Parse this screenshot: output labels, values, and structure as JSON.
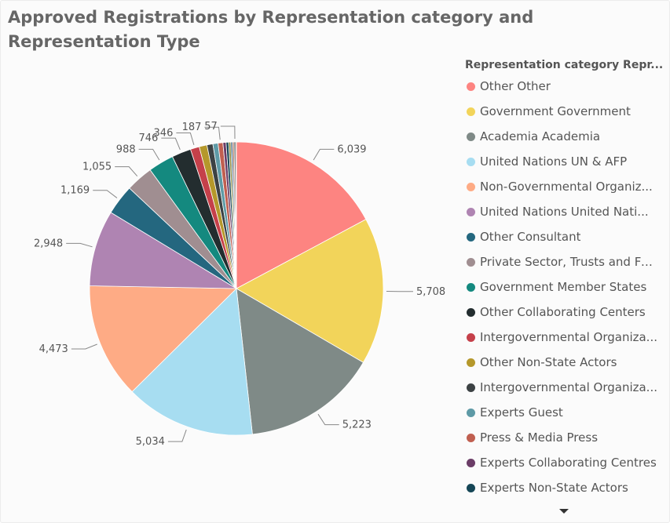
{
  "chart_data": {
    "type": "pie",
    "title": "Approved Registrations by Representation category and Representation Type",
    "legend": {
      "title": "Representation category Repr...",
      "placement": "right"
    },
    "slices": [
      {
        "label": "Other Other",
        "display_label": "Other Other",
        "value": 6039,
        "value_label": "6,039",
        "color": "#FD8481"
      },
      {
        "label": "Government Government",
        "display_label": "Government Government",
        "value": 5708,
        "value_label": "5,708",
        "color": "#F2D45A"
      },
      {
        "label": "Academia Academia",
        "display_label": "Academia Academia",
        "value": 5223,
        "value_label": "5,223",
        "color": "#7F8A87"
      },
      {
        "label": "United Nations UN & AFP",
        "display_label": "United Nations UN & AFP",
        "value": 5034,
        "value_label": "5,034",
        "color": "#A7DDF1"
      },
      {
        "label": "Non-Governmental Organiz...",
        "display_label": "Non-Governmental Organiz...",
        "value": 4473,
        "value_label": "4,473",
        "color": "#FEAB85"
      },
      {
        "label": "United Nations United Nati...",
        "display_label": "United Nations United Nati...",
        "value": 2948,
        "value_label": "2,948",
        "color": "#AF84B2"
      },
      {
        "label": "Other Consultant",
        "display_label": "Other Consultant",
        "value": 1169,
        "value_label": "1,169",
        "color": "#24677F"
      },
      {
        "label": "Private Sector, Trusts and Fo...",
        "display_label": "Private Sector, Trusts and Fo...",
        "value": 1055,
        "value_label": "1,055",
        "color": "#A08E91"
      },
      {
        "label": "Government Member States",
        "display_label": "Government Member States",
        "value": 988,
        "value_label": "988",
        "color": "#14897F"
      },
      {
        "label": "Other Collaborating Centers",
        "display_label": "Other Collaborating Centers",
        "value": 746,
        "value_label": "746",
        "color": "#232D2F"
      },
      {
        "label": "Intergovernmental Organiza...",
        "display_label": "Intergovernmental Organiza...",
        "value": 346,
        "value_label": "346",
        "color": "#C5404A"
      },
      {
        "label": "Other Non-State Actors",
        "display_label": "Other Non-State Actors",
        "value": 300,
        "value_label": "",
        "color": "#B5982B"
      },
      {
        "label": "Intergovernmental Organiza...",
        "display_label": "Intergovernmental Organiza...",
        "value": 230,
        "value_label": "",
        "color": "#3C4244"
      },
      {
        "label": "Experts Guest",
        "display_label": "Experts Guest",
        "value": 200,
        "value_label": "",
        "color": "#5E9AA6"
      },
      {
        "label": "Press & Media Press",
        "display_label": "Press & Media Press",
        "value": 187,
        "value_label": "187",
        "color": "#C05F50"
      },
      {
        "label": "Experts Collaborating Centres",
        "display_label": "Experts Collaborating Centres",
        "value": 120,
        "value_label": "",
        "color": "#6B3D67"
      },
      {
        "label": "Experts Non-State Actors",
        "display_label": "Experts Non-State Actors",
        "value": 100,
        "value_label": "",
        "color": "#154656"
      },
      {
        "label": "",
        "display_label": "",
        "value": 80,
        "value_label": "",
        "color": "#8C8A3A"
      },
      {
        "label": "",
        "display_label": "",
        "value": 70,
        "value_label": "",
        "color": "#4D6E8C"
      },
      {
        "label": "",
        "display_label": "",
        "value": 60,
        "value_label": "",
        "color": "#B06E58"
      },
      {
        "label": "",
        "display_label": "",
        "value": 57,
        "value_label": "57",
        "color": "#2F3D3D"
      },
      {
        "label": "",
        "display_label": "",
        "value": 30,
        "value_label": "",
        "color": "#7A5A2F"
      }
    ],
    "more_indicator": "more-legend-items"
  }
}
